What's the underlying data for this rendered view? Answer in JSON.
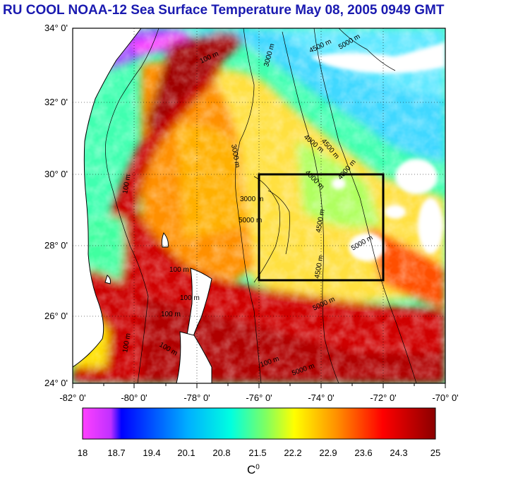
{
  "title": "RU COOL  NOAA-12 Sea Surface Temperature May 08, 2005 0949 GMT",
  "map": {
    "lat_labels": [
      "34° 0'",
      "32° 0'",
      "30° 0'",
      "28° 0'",
      "26° 0'",
      "24° 0'"
    ],
    "lon_labels": [
      "-82° 0'",
      "-80° 0'",
      "-78° 0'",
      "-76° 0'",
      "-74° 0'",
      "-72° 0'",
      "-70° 0'"
    ],
    "lat_range": [
      24,
      34
    ],
    "lon_range": [
      -82,
      -70
    ],
    "study_box": {
      "lon": [
        -76,
        -72
      ],
      "lat": [
        27,
        30
      ]
    },
    "contour_labels": [
      "100 m",
      "3000 m",
      "4000 m",
      "4500 m",
      "5000 m"
    ],
    "grid": true
  },
  "colorbar": {
    "tick_labels": [
      "18",
      "18.7",
      "19.4",
      "20.1",
      "20.8",
      "21.5",
      "22.2",
      "22.9",
      "23.6",
      "24.3",
      "25"
    ],
    "unit": "C",
    "unit_superscript": "0",
    "colors": [
      "#ff33ff",
      "#0000ff",
      "#00ffff",
      "#ffff00",
      "#ff0000",
      "#8b0000"
    ]
  }
}
